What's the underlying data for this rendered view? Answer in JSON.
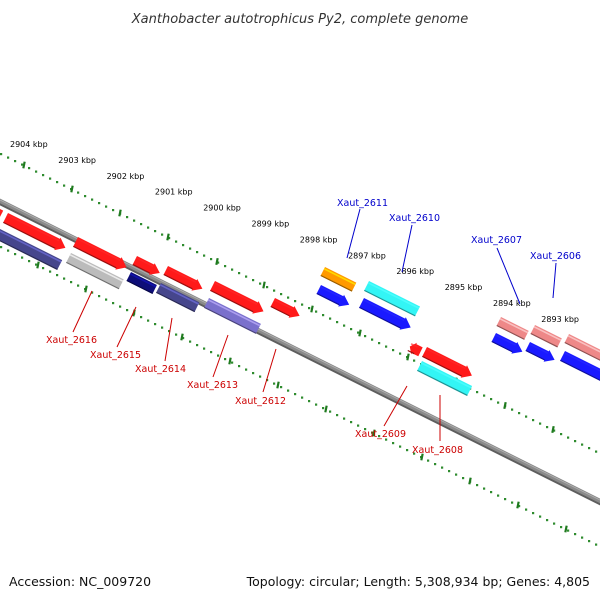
{
  "title": "Xanthobacter autotrophicus Py2, complete genome",
  "footer": {
    "accession": "Accession: NC_009720",
    "topology": "Topology: circular; Length: 5,308,934 bp; Genes: 4,805"
  },
  "colors": {
    "backbone": "#8a8a8a",
    "tick_dots": "#2e8b2e",
    "label_top": "#0000cc",
    "label_bottom": "#cc0000",
    "gene_red": "#ff1a1a",
    "gene_blue": "#1a1aff",
    "gene_cyan": "#33f5f5",
    "gene_orange": "#ff9900",
    "gene_pink": "#ee8888",
    "gene_navy": "#46468c",
    "gene_purple": "#7a70cc",
    "gene_gray": "#bbbbbb",
    "gene_darknavy": "#0d0d78"
  },
  "scale_labels": [
    "2904 kbp",
    "2903 kbp",
    "2902 kbp",
    "2901 kbp",
    "2900 kbp",
    "2899 kbp",
    "2898 kbp",
    "2897 kbp",
    "2896 kbp",
    "2895 kbp",
    "2894 kbp",
    "2893 kbp"
  ],
  "gene_labels_top": [
    "Xaut_2611",
    "Xaut_2610",
    "Xaut_2607",
    "Xaut_2606"
  ],
  "gene_labels_bottom": [
    "Xaut_2616",
    "Xaut_2615",
    "Xaut_2614",
    "Xaut_2613",
    "Xaut_2612",
    "Xaut_2609",
    "Xaut_2608"
  ]
}
